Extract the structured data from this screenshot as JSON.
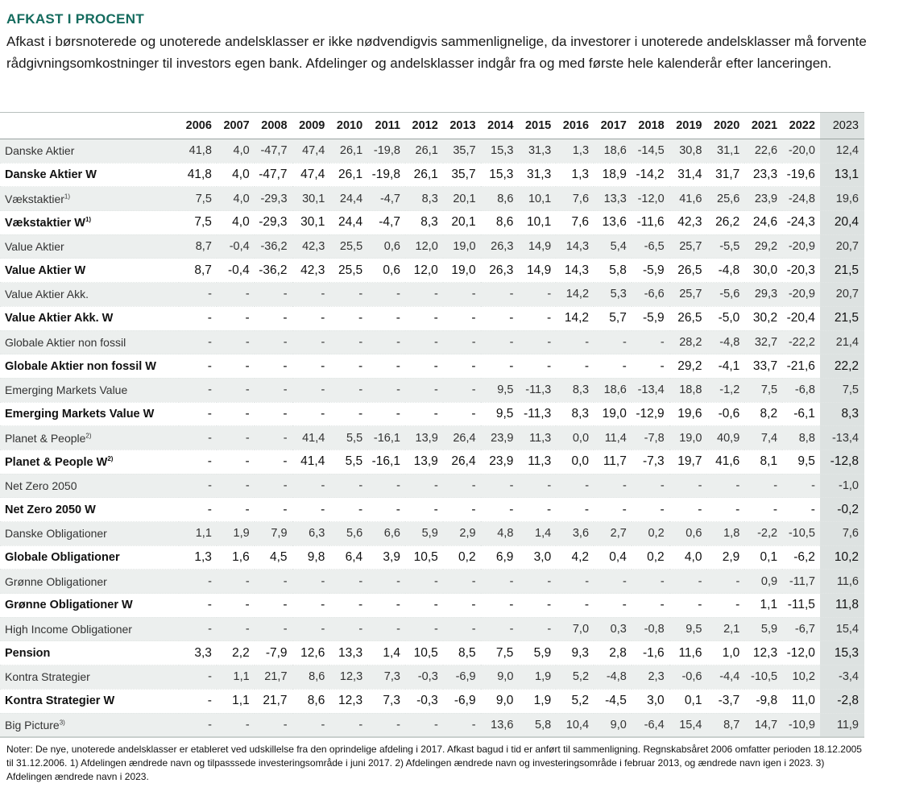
{
  "title": "AFKAST I PROCENT",
  "intro": "Afkast i børsnoterede og unoterede andelsklasser er ikke nødvendigvis sammenlignelige, da investorer i unoterede andelsklasser må forvente rådgivningsomkostninger til investors egen bank. Afdelinger og andelsklasser indgår fra og med første hele kalenderår efter lanceringen.",
  "table": {
    "years": [
      "2006",
      "2007",
      "2008",
      "2009",
      "2010",
      "2011",
      "2012",
      "2013",
      "2014",
      "2015",
      "2016",
      "2017",
      "2018",
      "2019",
      "2020",
      "2021",
      "2022",
      "2023"
    ],
    "rows": [
      {
        "label": "Danske Aktier",
        "note": "",
        "values": [
          "41,8",
          "4,0",
          "-47,7",
          "47,4",
          "26,1",
          "-19,8",
          "26,1",
          "35,7",
          "15,3",
          "31,3",
          "1,3",
          "18,6",
          "-14,5",
          "30,8",
          "31,1",
          "22,6",
          "-20,0",
          "12,4"
        ]
      },
      {
        "label": "Danske Aktier W",
        "note": "",
        "values": [
          "41,8",
          "4,0",
          "-47,7",
          "47,4",
          "26,1",
          "-19,8",
          "26,1",
          "35,7",
          "15,3",
          "31,3",
          "1,3",
          "18,9",
          "-14,2",
          "31,4",
          "31,7",
          "23,3",
          "-19,6",
          "13,1"
        ]
      },
      {
        "label": "Vækstaktier",
        "note": "1)",
        "values": [
          "7,5",
          "4,0",
          "-29,3",
          "30,1",
          "24,4",
          "-4,7",
          "8,3",
          "20,1",
          "8,6",
          "10,1",
          "7,6",
          "13,3",
          "-12,0",
          "41,6",
          "25,6",
          "23,9",
          "-24,8",
          "19,6"
        ]
      },
      {
        "label": "Vækstaktier W",
        "note": "1)",
        "values": [
          "7,5",
          "4,0",
          "-29,3",
          "30,1",
          "24,4",
          "-4,7",
          "8,3",
          "20,1",
          "8,6",
          "10,1",
          "7,6",
          "13,6",
          "-11,6",
          "42,3",
          "26,2",
          "24,6",
          "-24,3",
          "20,4"
        ]
      },
      {
        "label": "Value Aktier",
        "note": "",
        "values": [
          "8,7",
          "-0,4",
          "-36,2",
          "42,3",
          "25,5",
          "0,6",
          "12,0",
          "19,0",
          "26,3",
          "14,9",
          "14,3",
          "5,4",
          "-6,5",
          "25,7",
          "-5,5",
          "29,2",
          "-20,9",
          "20,7"
        ]
      },
      {
        "label": "Value Aktier W",
        "note": "",
        "values": [
          "8,7",
          "-0,4",
          "-36,2",
          "42,3",
          "25,5",
          "0,6",
          "12,0",
          "19,0",
          "26,3",
          "14,9",
          "14,3",
          "5,8",
          "-5,9",
          "26,5",
          "-4,8",
          "30,0",
          "-20,3",
          "21,5"
        ]
      },
      {
        "label": "Value Aktier Akk.",
        "note": "",
        "values": [
          "-",
          "-",
          "-",
          "-",
          "-",
          "-",
          "-",
          "-",
          "-",
          "-",
          "14,2",
          "5,3",
          "-6,6",
          "25,7",
          "-5,6",
          "29,3",
          "-20,9",
          "20,7"
        ]
      },
      {
        "label": "Value Aktier Akk. W",
        "note": "",
        "values": [
          "-",
          "-",
          "-",
          "-",
          "-",
          "-",
          "-",
          "-",
          "-",
          "-",
          "14,2",
          "5,7",
          "-5,9",
          "26,5",
          "-5,0",
          "30,2",
          "-20,4",
          "21,5"
        ]
      },
      {
        "label": "Globale Aktier non fossil",
        "note": "",
        "values": [
          "-",
          "-",
          "-",
          "-",
          "-",
          "-",
          "-",
          "-",
          "-",
          "-",
          "-",
          "-",
          "-",
          "28,2",
          "-4,8",
          "32,7",
          "-22,2",
          "21,4"
        ]
      },
      {
        "label": "Globale Aktier non fossil W",
        "note": "",
        "values": [
          "-",
          "-",
          "-",
          "-",
          "-",
          "-",
          "-",
          "-",
          "-",
          "-",
          "-",
          "-",
          "-",
          "29,2",
          "-4,1",
          "33,7",
          "-21,6",
          "22,2"
        ]
      },
      {
        "label": "Emerging Markets Value",
        "note": "",
        "values": [
          "-",
          "-",
          "-",
          "-",
          "-",
          "-",
          "-",
          "-",
          "9,5",
          "-11,3",
          "8,3",
          "18,6",
          "-13,4",
          "18,8",
          "-1,2",
          "7,5",
          "-6,8",
          "7,5"
        ]
      },
      {
        "label": "Emerging Markets Value W",
        "note": "",
        "values": [
          "-",
          "-",
          "-",
          "-",
          "-",
          "-",
          "-",
          "-",
          "9,5",
          "-11,3",
          "8,3",
          "19,0",
          "-12,9",
          "19,6",
          "-0,6",
          "8,2",
          "-6,1",
          "8,3"
        ]
      },
      {
        "label": "Planet & People",
        "note": "2)",
        "values": [
          "-",
          "-",
          "-",
          "41,4",
          "5,5",
          "-16,1",
          "13,9",
          "26,4",
          "23,9",
          "11,3",
          "0,0",
          "11,4",
          "-7,8",
          "19,0",
          "40,9",
          "7,4",
          "8,8",
          "-13,4"
        ]
      },
      {
        "label": "Planet & People W",
        "note": "2)",
        "values": [
          "-",
          "-",
          "-",
          "41,4",
          "5,5",
          "-16,1",
          "13,9",
          "26,4",
          "23,9",
          "11,3",
          "0,0",
          "11,7",
          "-7,3",
          "19,7",
          "41,6",
          "8,1",
          "9,5",
          "-12,8"
        ]
      },
      {
        "label": "Net Zero 2050",
        "note": "",
        "values": [
          "-",
          "-",
          "-",
          "-",
          "-",
          "-",
          "-",
          "-",
          "-",
          "-",
          "-",
          "-",
          "-",
          "-",
          "-",
          "-",
          "-",
          "-1,0"
        ]
      },
      {
        "label": "Net Zero 2050 W",
        "note": "",
        "values": [
          "-",
          "-",
          "-",
          "-",
          "-",
          "-",
          "-",
          "-",
          "-",
          "-",
          "-",
          "-",
          "-",
          "-",
          "-",
          "-",
          "-",
          "-0,2"
        ]
      },
      {
        "label": "Danske Obligationer",
        "note": "",
        "values": [
          "1,1",
          "1,9",
          "7,9",
          "6,3",
          "5,6",
          "6,6",
          "5,9",
          "2,9",
          "4,8",
          "1,4",
          "3,6",
          "2,7",
          "0,2",
          "0,6",
          "1,8",
          "-2,2",
          "-10,5",
          "7,6"
        ]
      },
      {
        "label": "Globale Obligationer",
        "note": "",
        "values": [
          "1,3",
          "1,6",
          "4,5",
          "9,8",
          "6,4",
          "3,9",
          "10,5",
          "0,2",
          "6,9",
          "3,0",
          "4,2",
          "0,4",
          "0,2",
          "4,0",
          "2,9",
          "0,1",
          "-6,2",
          "10,2"
        ]
      },
      {
        "label": "Grønne Obligationer",
        "note": "",
        "values": [
          "-",
          "-",
          "-",
          "-",
          "-",
          "-",
          "-",
          "-",
          "-",
          "-",
          "-",
          "-",
          "-",
          "-",
          "-",
          "0,9",
          "-11,7",
          "11,6"
        ]
      },
      {
        "label": "Grønne Obligationer W",
        "note": "",
        "values": [
          "-",
          "-",
          "-",
          "-",
          "-",
          "-",
          "-",
          "-",
          "-",
          "-",
          "-",
          "-",
          "-",
          "-",
          "-",
          "1,1",
          "-11,5",
          "11,8"
        ]
      },
      {
        "label": "High Income Obligationer",
        "note": "",
        "values": [
          "-",
          "-",
          "-",
          "-",
          "-",
          "-",
          "-",
          "-",
          "-",
          "-",
          "7,0",
          "0,3",
          "-0,8",
          "9,5",
          "2,1",
          "5,9",
          "-6,7",
          "15,4"
        ]
      },
      {
        "label": "Pension",
        "note": "",
        "values": [
          "3,3",
          "2,2",
          "-7,9",
          "12,6",
          "13,3",
          "1,4",
          "10,5",
          "8,5",
          "7,5",
          "5,9",
          "9,3",
          "2,8",
          "-1,6",
          "11,6",
          "1,0",
          "12,3",
          "-12,0",
          "15,3"
        ]
      },
      {
        "label": "Kontra Strategier",
        "note": "",
        "values": [
          "-",
          "1,1",
          "21,7",
          "8,6",
          "12,3",
          "7,3",
          "-0,3",
          "-6,9",
          "9,0",
          "1,9",
          "5,2",
          "-4,8",
          "2,3",
          "-0,6",
          "-4,4",
          "-10,5",
          "10,2",
          "-3,4"
        ]
      },
      {
        "label": "Kontra Strategier W",
        "note": "",
        "values": [
          "-",
          "1,1",
          "21,7",
          "8,6",
          "12,3",
          "7,3",
          "-0,3",
          "-6,9",
          "9,0",
          "1,9",
          "5,2",
          "-4,5",
          "3,0",
          "0,1",
          "-3,7",
          "-9,8",
          "11,0",
          "-2,8"
        ]
      },
      {
        "label": "Big Picture",
        "note": "3)",
        "values": [
          "-",
          "-",
          "-",
          "-",
          "-",
          "-",
          "-",
          "-",
          "13,6",
          "5,8",
          "10,4",
          "9,0",
          "-6,4",
          "15,4",
          "8,7",
          "14,7",
          "-10,9",
          "11,9"
        ]
      }
    ]
  },
  "notes": "Noter: De nye, unoterede andelsklasser er etableret ved udskillelse fra den oprindelige afdeling i 2017. Afkast bagud i tid er anført til sammenligning. Regnskabsåret 2006 omfatter perioden 18.12.2005 til 31.12.2006. 1) Afdelingen ændrede navn og tilpasssede investeringsområde i juni 2017. 2) Afdelingen ændrede navn og investeringsområde i februar 2013, og ændrede navn igen i 2023. 3) Afdelingen ændrede navn i 2023.",
  "colors": {
    "title": "#146b5e",
    "row_shade": "#ecefee",
    "highlight_column": "#dde2e1"
  }
}
